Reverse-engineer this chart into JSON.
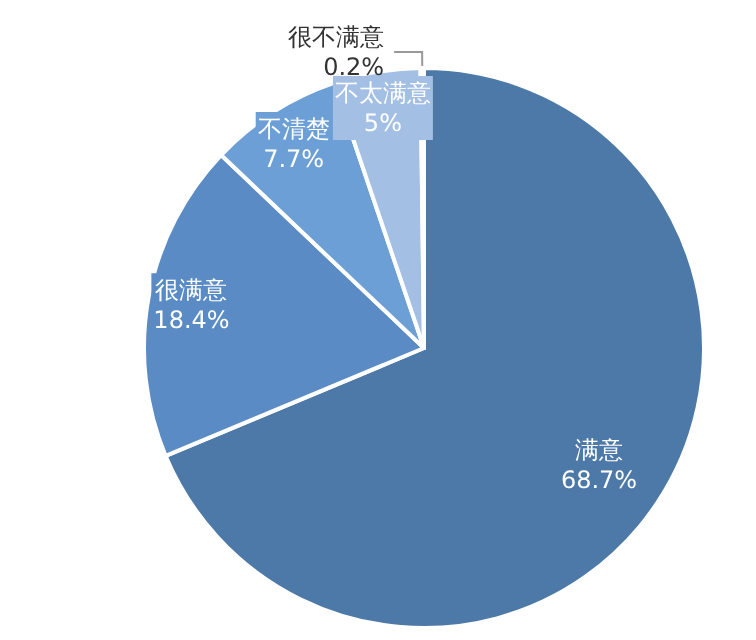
{
  "chart_data": {
    "type": "pie",
    "categories": [
      "满意",
      "很满意",
      "不清楚",
      "不太满意",
      "很不满意"
    ],
    "values": [
      68.7,
      18.4,
      7.7,
      5,
      0.2
    ],
    "value_labels": [
      "68.7%",
      "18.4%",
      "7.7%",
      "5%",
      "0.2%"
    ],
    "colors": [
      "#4d79a8",
      "#5a8bc5",
      "#6b9fd6",
      "#a3bfe3",
      "#c9d9ef"
    ],
    "legend": false
  }
}
